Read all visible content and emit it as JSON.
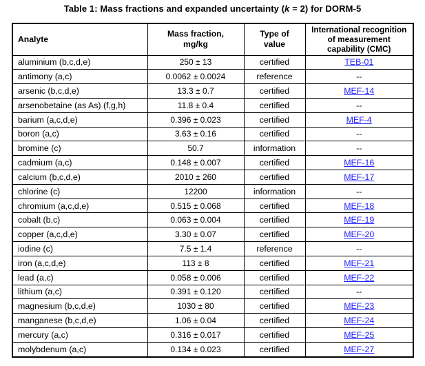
{
  "title": {
    "prefix": "Table 1: Mass fractions and expanded uncertainty (",
    "k": "k",
    "suffix": " = 2) for DORM-5"
  },
  "colors": {
    "link": "#1f1fff",
    "border": "#000000",
    "text": "#000000",
    "background": "#ffffff"
  },
  "table": {
    "columns": [
      {
        "id": "analyte",
        "lines": [
          "Analyte"
        ]
      },
      {
        "id": "mass_fraction",
        "lines": [
          "Mass fraction,",
          "mg/kg"
        ]
      },
      {
        "id": "type_of_value",
        "lines": [
          "Type of",
          "value"
        ]
      },
      {
        "id": "cmc",
        "lines": [
          "International recognition",
          "of measurement",
          "capability (CMC)"
        ]
      }
    ],
    "rows": [
      {
        "analyte": "aluminium (b,c,d,e)",
        "mass_fraction": "250 ± 13",
        "type": "certified",
        "cmc": "TEB-01",
        "cmc_is_link": true
      },
      {
        "analyte": "antimony (a,c)",
        "mass_fraction": "0.0062 ± 0.0024",
        "type": "reference",
        "cmc": "--",
        "cmc_is_link": false
      },
      {
        "analyte": "arsenic (b,c,d,e)",
        "mass_fraction": "13.3 ± 0.7",
        "type": "certified",
        "cmc": "MEF-14",
        "cmc_is_link": true
      },
      {
        "analyte": "arsenobetaine (as As) (f,g,h)",
        "mass_fraction": "11.8 ± 0.4",
        "type": "certified",
        "cmc": "--",
        "cmc_is_link": false
      },
      {
        "analyte": "barium (a,c,d,e)",
        "mass_fraction": "0.396 ± 0.023",
        "type": "certified",
        "cmc": "MEF-4",
        "cmc_is_link": true
      },
      {
        "analyte": "boron (a,c)",
        "mass_fraction": "3.63 ± 0.16",
        "type": "certified",
        "cmc": "--",
        "cmc_is_link": false
      },
      {
        "analyte": "bromine (c)",
        "mass_fraction": "50.7",
        "type": "information",
        "cmc": "--",
        "cmc_is_link": false
      },
      {
        "analyte": "cadmium (a,c)",
        "mass_fraction": "0.148 ± 0.007",
        "type": "certified",
        "cmc": "MEF-16",
        "cmc_is_link": true
      },
      {
        "analyte": "calcium (b,c,d,e)",
        "mass_fraction": "2010 ± 260",
        "type": "certified",
        "cmc": "MEF-17",
        "cmc_is_link": true
      },
      {
        "analyte": "chlorine (c)",
        "mass_fraction": "12200",
        "type": "information",
        "cmc": "--",
        "cmc_is_link": false
      },
      {
        "analyte": "chromium (a,c,d,e)",
        "mass_fraction": "0.515 ± 0.068",
        "type": "certified",
        "cmc": "MEF-18",
        "cmc_is_link": true
      },
      {
        "analyte": "cobalt (b,c)",
        "mass_fraction": "0.063 ± 0.004",
        "type": "certified",
        "cmc": "MEF-19",
        "cmc_is_link": true
      },
      {
        "analyte": "copper (a,c,d,e)",
        "mass_fraction": "3.30 ± 0.07",
        "type": "certified",
        "cmc": "MEF-20",
        "cmc_is_link": true
      },
      {
        "analyte": "iodine (c)",
        "mass_fraction": "7.5 ± 1.4",
        "type": "reference",
        "cmc": "--",
        "cmc_is_link": false
      },
      {
        "analyte": "iron (a,c,d,e)",
        "mass_fraction": "113 ± 8",
        "type": "certified",
        "cmc": "MEF-21",
        "cmc_is_link": true
      },
      {
        "analyte": "lead (a,c)",
        "mass_fraction": "0.058 ± 0.006",
        "type": "certified",
        "cmc": "MEF-22",
        "cmc_is_link": true
      },
      {
        "analyte": "lithium (a,c)",
        "mass_fraction": "0.391 ± 0.120",
        "type": "certified",
        "cmc": "--",
        "cmc_is_link": false
      },
      {
        "analyte": "magnesium (b,c,d,e)",
        "mass_fraction": "1030 ± 80",
        "type": "certified",
        "cmc": "MEF-23",
        "cmc_is_link": true
      },
      {
        "analyte": "manganese (b,c,d,e)",
        "mass_fraction": "1.06 ± 0.04",
        "type": "certified",
        "cmc": "MEF-24",
        "cmc_is_link": true
      },
      {
        "analyte": "mercury (a,c)",
        "mass_fraction": "0.316 ± 0.017",
        "type": "certified",
        "cmc": "MEF-25",
        "cmc_is_link": true
      },
      {
        "analyte": "molybdenum (a,c)",
        "mass_fraction": "0.134 ± 0.023",
        "type": "certified",
        "cmc": "MEF-27",
        "cmc_is_link": true
      }
    ]
  }
}
